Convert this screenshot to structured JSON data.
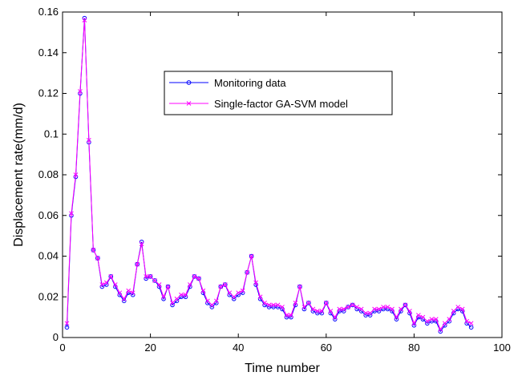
{
  "chart_data": {
    "type": "line",
    "xlabel": "Time number",
    "ylabel": "Displacement rate(mm/d)",
    "xlim": [
      0,
      100
    ],
    "ylim": [
      0,
      0.16
    ],
    "x_ticks": [
      "0",
      "20",
      "40",
      "60",
      "80",
      "100"
    ],
    "y_ticks": [
      "0",
      "0.02",
      "0.04",
      "0.06",
      "0.08",
      "0.1",
      "0.12",
      "0.14",
      "0.16"
    ],
    "grid": false,
    "legend_position": "upper-center",
    "x": [
      1,
      2,
      3,
      4,
      5,
      6,
      7,
      8,
      9,
      10,
      11,
      12,
      13,
      14,
      15,
      16,
      17,
      18,
      19,
      20,
      21,
      22,
      23,
      24,
      25,
      26,
      27,
      28,
      29,
      30,
      31,
      32,
      33,
      34,
      35,
      36,
      37,
      38,
      39,
      40,
      41,
      42,
      43,
      44,
      45,
      46,
      47,
      48,
      49,
      50,
      51,
      52,
      53,
      54,
      55,
      56,
      57,
      58,
      59,
      60,
      61,
      62,
      63,
      64,
      65,
      66,
      67,
      68,
      69,
      70,
      71,
      72,
      73,
      74,
      75,
      76,
      77,
      78,
      79,
      80,
      81,
      82,
      83,
      84,
      85,
      86,
      87,
      88,
      89,
      90,
      91,
      92,
      93
    ],
    "series": [
      {
        "name": "Monitoring data",
        "color": "#0000ff",
        "marker": "circle",
        "values": [
          0.005,
          0.06,
          0.079,
          0.12,
          0.157,
          0.096,
          0.043,
          0.039,
          0.025,
          0.026,
          0.03,
          0.025,
          0.021,
          0.018,
          0.022,
          0.021,
          0.036,
          0.047,
          0.029,
          0.03,
          0.028,
          0.025,
          0.019,
          0.025,
          0.016,
          0.018,
          0.02,
          0.02,
          0.025,
          0.03,
          0.029,
          0.022,
          0.017,
          0.015,
          0.017,
          0.025,
          0.026,
          0.021,
          0.019,
          0.021,
          0.022,
          0.032,
          0.04,
          0.026,
          0.019,
          0.016,
          0.015,
          0.015,
          0.015,
          0.014,
          0.01,
          0.01,
          0.016,
          0.025,
          0.014,
          0.017,
          0.013,
          0.012,
          0.012,
          0.017,
          0.012,
          0.009,
          0.013,
          0.013,
          0.015,
          0.016,
          0.014,
          0.013,
          0.011,
          0.011,
          0.013,
          0.013,
          0.014,
          0.014,
          0.013,
          0.009,
          0.013,
          0.016,
          0.012,
          0.006,
          0.01,
          0.009,
          0.007,
          0.008,
          0.008,
          0.003,
          0.006,
          0.008,
          0.012,
          0.014,
          0.013,
          0.007,
          0.005
        ]
      },
      {
        "name": "Single-factor GA-SVM model",
        "color": "#ff00ff",
        "marker": "x",
        "values": [
          0.007,
          0.061,
          0.08,
          0.121,
          0.156,
          0.097,
          0.043,
          0.039,
          0.026,
          0.027,
          0.03,
          0.026,
          0.022,
          0.019,
          0.023,
          0.022,
          0.036,
          0.046,
          0.03,
          0.03,
          0.028,
          0.026,
          0.02,
          0.025,
          0.017,
          0.019,
          0.021,
          0.021,
          0.026,
          0.03,
          0.029,
          0.023,
          0.018,
          0.016,
          0.018,
          0.025,
          0.026,
          0.022,
          0.02,
          0.022,
          0.023,
          0.032,
          0.04,
          0.027,
          0.02,
          0.017,
          0.016,
          0.016,
          0.016,
          0.015,
          0.011,
          0.011,
          0.017,
          0.025,
          0.015,
          0.017,
          0.014,
          0.013,
          0.013,
          0.017,
          0.013,
          0.01,
          0.014,
          0.014,
          0.015,
          0.016,
          0.015,
          0.014,
          0.012,
          0.012,
          0.014,
          0.014,
          0.015,
          0.015,
          0.014,
          0.01,
          0.014,
          0.016,
          0.013,
          0.007,
          0.011,
          0.01,
          0.008,
          0.009,
          0.009,
          0.004,
          0.007,
          0.009,
          0.013,
          0.015,
          0.014,
          0.008,
          0.007
        ]
      }
    ]
  }
}
